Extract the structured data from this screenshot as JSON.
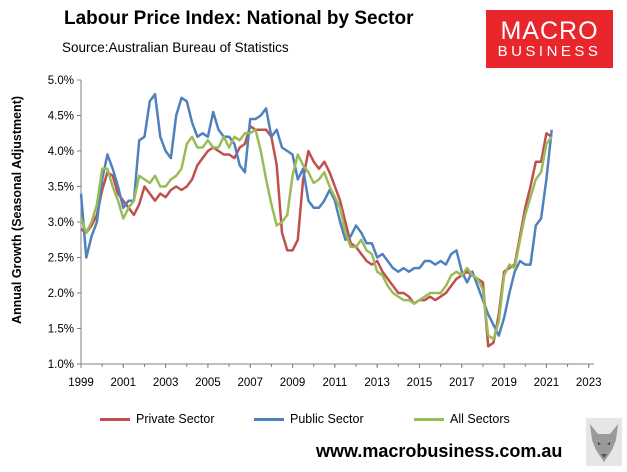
{
  "title": "Labour Price Index: National by Sector",
  "source": "Source:Australian Bureau of Statistics",
  "logo": {
    "line1": "MACRO",
    "line2": "BUSINESS"
  },
  "url": "www.macrobusiness.com.au",
  "colors": {
    "private": "#c0504d",
    "public": "#4f81bd",
    "all": "#9bbb59",
    "logo": "#e8262b"
  },
  "chart_data": {
    "type": "line",
    "ylabel": "Annual Growth (Seasonal Adjustment)",
    "xlabel": "",
    "ylim": [
      1.0,
      5.0
    ],
    "xlim": [
      1999,
      2023.25
    ],
    "yticks": [
      "1.0%",
      "1.5%",
      "2.0%",
      "2.5%",
      "3.0%",
      "3.5%",
      "4.0%",
      "4.5%",
      "5.0%"
    ],
    "xticks": [
      "1999",
      "2001",
      "2003",
      "2005",
      "2007",
      "2009",
      "2011",
      "2013",
      "2015",
      "2017",
      "2019",
      "2021",
      "2023"
    ],
    "grid": false,
    "legend": "bottom",
    "series": [
      {
        "name": "Private Sector",
        "color": "#c0504d",
        "points": [
          [
            1999,
            2.9
          ],
          [
            1999.25,
            2.85
          ],
          [
            1999.5,
            2.95
          ],
          [
            1999.75,
            3.1
          ],
          [
            2000,
            3.45
          ],
          [
            2000.25,
            3.7
          ],
          [
            2000.5,
            3.65
          ],
          [
            2000.75,
            3.4
          ],
          [
            2001,
            3.3
          ],
          [
            2001.25,
            3.2
          ],
          [
            2001.5,
            3.1
          ],
          [
            2001.75,
            3.25
          ],
          [
            2002,
            3.5
          ],
          [
            2002.25,
            3.4
          ],
          [
            2002.5,
            3.3
          ],
          [
            2002.75,
            3.4
          ],
          [
            2003,
            3.35
          ],
          [
            2003.25,
            3.45
          ],
          [
            2003.5,
            3.5
          ],
          [
            2003.75,
            3.45
          ],
          [
            2004,
            3.5
          ],
          [
            2004.25,
            3.6
          ],
          [
            2004.5,
            3.8
          ],
          [
            2004.75,
            3.9
          ],
          [
            2005,
            4.0
          ],
          [
            2005.25,
            4.05
          ],
          [
            2005.5,
            4.0
          ],
          [
            2005.75,
            3.95
          ],
          [
            2006,
            3.95
          ],
          [
            2006.25,
            3.9
          ],
          [
            2006.5,
            4.05
          ],
          [
            2006.75,
            4.1
          ],
          [
            2007,
            4.35
          ],
          [
            2007.25,
            4.3
          ],
          [
            2007.5,
            4.3
          ],
          [
            2007.75,
            4.3
          ],
          [
            2008,
            4.2
          ],
          [
            2008.25,
            3.8
          ],
          [
            2008.5,
            2.85
          ],
          [
            2008.75,
            2.6
          ],
          [
            2009,
            2.6
          ],
          [
            2009.25,
            2.75
          ],
          [
            2009.5,
            3.6
          ],
          [
            2009.75,
            4.0
          ],
          [
            2010,
            3.85
          ],
          [
            2010.25,
            3.75
          ],
          [
            2010.5,
            3.85
          ],
          [
            2010.75,
            3.7
          ],
          [
            2011,
            3.5
          ],
          [
            2011.25,
            3.3
          ],
          [
            2011.5,
            3.0
          ],
          [
            2011.75,
            2.7
          ],
          [
            2012,
            2.65
          ],
          [
            2012.25,
            2.55
          ],
          [
            2012.5,
            2.45
          ],
          [
            2012.75,
            2.4
          ],
          [
            2013,
            2.45
          ],
          [
            2013.25,
            2.3
          ],
          [
            2013.5,
            2.2
          ],
          [
            2013.75,
            2.1
          ],
          [
            2014,
            2.0
          ],
          [
            2014.25,
            2.0
          ],
          [
            2014.5,
            1.95
          ],
          [
            2014.75,
            1.85
          ],
          [
            2015,
            1.9
          ],
          [
            2015.25,
            1.9
          ],
          [
            2015.5,
            1.95
          ],
          [
            2015.75,
            1.9
          ],
          [
            2016,
            1.95
          ],
          [
            2016.25,
            2.0
          ],
          [
            2016.5,
            2.1
          ],
          [
            2016.75,
            2.2
          ],
          [
            2017,
            2.25
          ],
          [
            2017.25,
            2.3
          ],
          [
            2017.5,
            2.25
          ],
          [
            2017.75,
            2.2
          ],
          [
            2018,
            2.15
          ],
          [
            2018.25,
            1.25
          ],
          [
            2018.5,
            1.3
          ],
          [
            2018.75,
            1.7
          ],
          [
            2019,
            2.3
          ],
          [
            2019.25,
            2.35
          ],
          [
            2019.5,
            2.4
          ],
          [
            2019.75,
            2.8
          ],
          [
            2020,
            3.2
          ],
          [
            2020.25,
            3.5
          ],
          [
            2020.5,
            3.85
          ],
          [
            2020.75,
            3.85
          ],
          [
            2021,
            4.25
          ],
          [
            2021.25,
            4.2
          ]
        ]
      },
      {
        "name": "Public Sector",
        "color": "#4f81bd",
        "points": [
          [
            1999,
            3.4
          ],
          [
            1999.25,
            2.5
          ],
          [
            1999.5,
            2.8
          ],
          [
            1999.75,
            3.0
          ],
          [
            2000,
            3.6
          ],
          [
            2000.25,
            3.95
          ],
          [
            2000.5,
            3.75
          ],
          [
            2000.75,
            3.5
          ],
          [
            2001,
            3.2
          ],
          [
            2001.25,
            3.3
          ],
          [
            2001.5,
            3.3
          ],
          [
            2001.75,
            4.15
          ],
          [
            2002,
            4.2
          ],
          [
            2002.25,
            4.7
          ],
          [
            2002.5,
            4.8
          ],
          [
            2002.75,
            4.2
          ],
          [
            2003,
            4.0
          ],
          [
            2003.25,
            3.9
          ],
          [
            2003.5,
            4.5
          ],
          [
            2003.75,
            4.75
          ],
          [
            2004,
            4.7
          ],
          [
            2004.25,
            4.4
          ],
          [
            2004.5,
            4.2
          ],
          [
            2004.75,
            4.25
          ],
          [
            2005,
            4.2
          ],
          [
            2005.25,
            4.55
          ],
          [
            2005.5,
            4.3
          ],
          [
            2005.75,
            4.2
          ],
          [
            2006,
            4.2
          ],
          [
            2006.25,
            4.1
          ],
          [
            2006.5,
            3.8
          ],
          [
            2006.75,
            3.7
          ],
          [
            2007,
            4.45
          ],
          [
            2007.25,
            4.45
          ],
          [
            2007.5,
            4.5
          ],
          [
            2007.75,
            4.6
          ],
          [
            2008,
            4.2
          ],
          [
            2008.25,
            4.3
          ],
          [
            2008.5,
            4.05
          ],
          [
            2008.75,
            4.0
          ],
          [
            2009,
            3.95
          ],
          [
            2009.25,
            3.6
          ],
          [
            2009.5,
            3.75
          ],
          [
            2009.75,
            3.3
          ],
          [
            2010,
            3.2
          ],
          [
            2010.25,
            3.2
          ],
          [
            2010.5,
            3.3
          ],
          [
            2010.75,
            3.45
          ],
          [
            2011,
            3.3
          ],
          [
            2011.25,
            3.0
          ],
          [
            2011.5,
            2.75
          ],
          [
            2011.75,
            2.8
          ],
          [
            2012,
            2.95
          ],
          [
            2012.25,
            2.85
          ],
          [
            2012.5,
            2.7
          ],
          [
            2012.75,
            2.7
          ],
          [
            2013,
            2.5
          ],
          [
            2013.25,
            2.55
          ],
          [
            2013.5,
            2.45
          ],
          [
            2013.75,
            2.35
          ],
          [
            2014,
            2.3
          ],
          [
            2014.25,
            2.35
          ],
          [
            2014.5,
            2.3
          ],
          [
            2014.75,
            2.35
          ],
          [
            2015,
            2.35
          ],
          [
            2015.25,
            2.45
          ],
          [
            2015.5,
            2.45
          ],
          [
            2015.75,
            2.4
          ],
          [
            2016,
            2.45
          ],
          [
            2016.25,
            2.4
          ],
          [
            2016.5,
            2.55
          ],
          [
            2016.75,
            2.6
          ],
          [
            2017,
            2.3
          ],
          [
            2017.25,
            2.15
          ],
          [
            2017.5,
            2.3
          ],
          [
            2017.75,
            2.1
          ],
          [
            2018,
            1.9
          ],
          [
            2018.25,
            1.7
          ],
          [
            2018.5,
            1.55
          ],
          [
            2018.75,
            1.4
          ],
          [
            2019,
            1.65
          ],
          [
            2019.25,
            2.0
          ],
          [
            2019.5,
            2.3
          ],
          [
            2019.75,
            2.45
          ],
          [
            2020,
            2.4
          ],
          [
            2020.25,
            2.4
          ],
          [
            2020.5,
            2.95
          ],
          [
            2020.75,
            3.05
          ],
          [
            2021,
            3.6
          ],
          [
            2021.25,
            4.3
          ]
        ]
      },
      {
        "name": "All Sectors",
        "color": "#9bbb59",
        "points": [
          [
            1999,
            3.05
          ],
          [
            1999.25,
            2.85
          ],
          [
            1999.5,
            3.0
          ],
          [
            1999.75,
            3.25
          ],
          [
            2000,
            3.75
          ],
          [
            2000.25,
            3.75
          ],
          [
            2000.5,
            3.5
          ],
          [
            2000.75,
            3.3
          ],
          [
            2001,
            3.05
          ],
          [
            2001.25,
            3.2
          ],
          [
            2001.5,
            3.3
          ],
          [
            2001.75,
            3.65
          ],
          [
            2002,
            3.6
          ],
          [
            2002.25,
            3.55
          ],
          [
            2002.5,
            3.65
          ],
          [
            2002.75,
            3.5
          ],
          [
            2003,
            3.5
          ],
          [
            2003.25,
            3.6
          ],
          [
            2003.5,
            3.65
          ],
          [
            2003.75,
            3.75
          ],
          [
            2004,
            4.1
          ],
          [
            2004.25,
            4.2
          ],
          [
            2004.5,
            4.05
          ],
          [
            2004.75,
            4.05
          ],
          [
            2005,
            4.15
          ],
          [
            2005.25,
            4.05
          ],
          [
            2005.5,
            4.05
          ],
          [
            2005.75,
            4.2
          ],
          [
            2006,
            4.05
          ],
          [
            2006.25,
            4.2
          ],
          [
            2006.5,
            4.15
          ],
          [
            2006.75,
            4.25
          ],
          [
            2007,
            4.25
          ],
          [
            2007.25,
            4.3
          ],
          [
            2007.5,
            4.0
          ],
          [
            2007.75,
            3.6
          ],
          [
            2008,
            3.25
          ],
          [
            2008.25,
            2.95
          ],
          [
            2008.5,
            3.0
          ],
          [
            2008.75,
            3.1
          ],
          [
            2009,
            3.65
          ],
          [
            2009.25,
            3.95
          ],
          [
            2009.5,
            3.8
          ],
          [
            2009.75,
            3.7
          ],
          [
            2010,
            3.55
          ],
          [
            2010.25,
            3.6
          ],
          [
            2010.5,
            3.7
          ],
          [
            2010.75,
            3.5
          ],
          [
            2011,
            3.35
          ],
          [
            2011.25,
            3.2
          ],
          [
            2011.5,
            2.85
          ],
          [
            2011.75,
            2.65
          ],
          [
            2012,
            2.65
          ],
          [
            2012.25,
            2.75
          ],
          [
            2012.5,
            2.6
          ],
          [
            2012.75,
            2.55
          ],
          [
            2013,
            2.3
          ],
          [
            2013.25,
            2.25
          ],
          [
            2013.5,
            2.1
          ],
          [
            2013.75,
            2.0
          ],
          [
            2014,
            1.95
          ],
          [
            2014.25,
            1.9
          ],
          [
            2014.5,
            1.9
          ],
          [
            2014.75,
            1.85
          ],
          [
            2015,
            1.9
          ],
          [
            2015.25,
            1.95
          ],
          [
            2015.5,
            2.0
          ],
          [
            2015.75,
            2.0
          ],
          [
            2016,
            2.0
          ],
          [
            2016.25,
            2.1
          ],
          [
            2016.5,
            2.25
          ],
          [
            2016.75,
            2.3
          ],
          [
            2017,
            2.25
          ],
          [
            2017.25,
            2.35
          ],
          [
            2017.5,
            2.25
          ],
          [
            2017.75,
            2.2
          ],
          [
            2018,
            2.05
          ],
          [
            2018.25,
            1.4
          ],
          [
            2018.5,
            1.35
          ],
          [
            2018.75,
            1.6
          ],
          [
            2019,
            2.25
          ],
          [
            2019.25,
            2.4
          ],
          [
            2019.5,
            2.35
          ],
          [
            2019.75,
            2.75
          ],
          [
            2020,
            3.1
          ],
          [
            2020.25,
            3.35
          ],
          [
            2020.5,
            3.6
          ],
          [
            2020.75,
            3.7
          ],
          [
            2021,
            4.1
          ],
          [
            2021.25,
            4.2
          ]
        ]
      }
    ]
  }
}
